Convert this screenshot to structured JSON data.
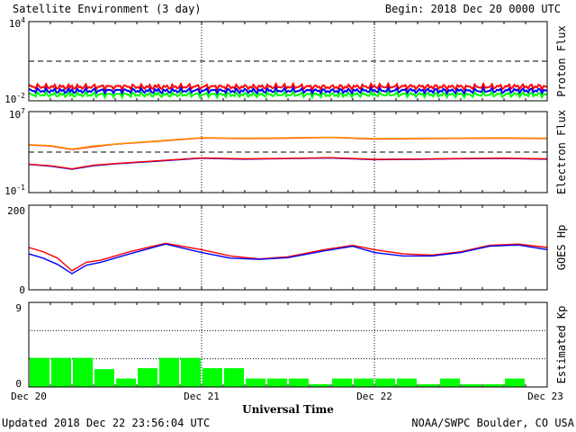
{
  "header": {
    "title": "Satellite Environment (3 day)",
    "begin": "Begin:  2018 Dec 20 0000 UTC"
  },
  "footer": {
    "updated": "Updated 2018 Dec 22 23:56:04 UTC",
    "credit": "NOAA/SWPC Boulder, CO USA"
  },
  "x_axis": {
    "title": "Universal Time",
    "ticks": [
      "Dec 20",
      "Dec 21",
      "Dec 22",
      "Dec 23"
    ],
    "range": [
      0,
      72
    ],
    "unit_note": "hours since 2018 Dec 20 0000 UTC"
  },
  "colors": {
    "red": "#ff0000",
    "blue": "#0000ff",
    "green": "#00ff00",
    "orange": "#ff9900",
    "kp_bar": "#00ff00"
  },
  "chart_data": [
    {
      "type": "line",
      "ylabel": "Proton Flux",
      "yscale": "log",
      "ylim": [
        0.01,
        10000
      ],
      "ytick_base": "10",
      "ytick_exps": [
        "4",
        "-2"
      ],
      "threshold": 10,
      "series": [
        {
          "color": "red",
          "x": [
            0,
            6,
            12,
            18,
            24,
            30,
            36,
            42,
            48,
            54,
            60,
            66,
            72
          ],
          "y": [
            0.12,
            0.11,
            0.12,
            0.11,
            0.12,
            0.11,
            0.12,
            0.11,
            0.12,
            0.12,
            0.11,
            0.12,
            0.12
          ]
        },
        {
          "color": "blue",
          "x": [
            0,
            6,
            12,
            18,
            24,
            30,
            36,
            42,
            48,
            54,
            60,
            66,
            72
          ],
          "y": [
            0.06,
            0.055,
            0.06,
            0.055,
            0.06,
            0.055,
            0.06,
            0.055,
            0.06,
            0.06,
            0.055,
            0.06,
            0.06
          ]
        },
        {
          "color": "green",
          "x": [
            0,
            6,
            12,
            18,
            24,
            30,
            36,
            42,
            48,
            54,
            60,
            66,
            72
          ],
          "y": [
            0.03,
            0.028,
            0.03,
            0.028,
            0.03,
            0.028,
            0.03,
            0.028,
            0.03,
            0.03,
            0.028,
            0.03,
            0.03
          ]
        }
      ]
    },
    {
      "type": "line",
      "ylabel": "Electron Flux",
      "yscale": "log",
      "ylim": [
        0.1,
        10000000
      ],
      "ytick_base": "10",
      "ytick_exps": [
        "7",
        "-1"
      ],
      "threshold": 1000,
      "series": [
        {
          "color": "red",
          "x": [
            0,
            3,
            6,
            9,
            12,
            18,
            24,
            30,
            36,
            42,
            48,
            54,
            60,
            66,
            72
          ],
          "y": [
            5000,
            4000,
            1800,
            3500,
            6000,
            12000,
            25000,
            22000,
            24000,
            28000,
            20000,
            21000,
            23000,
            24000,
            22000
          ]
        },
        {
          "color": "orange",
          "x": [
            0,
            3,
            6,
            9,
            12,
            18,
            24,
            30,
            36,
            42,
            48,
            54,
            60,
            66,
            72
          ],
          "y": [
            5500,
            4500,
            2000,
            4000,
            6500,
            13000,
            27000,
            24000,
            26000,
            30000,
            22000,
            23000,
            25000,
            26000,
            24000
          ]
        },
        {
          "color": "blue",
          "x": [
            0,
            3,
            6,
            9,
            12,
            18,
            24,
            30,
            36,
            42,
            48,
            54,
            60,
            66,
            72
          ],
          "y": [
            60,
            40,
            20,
            45,
            70,
            130,
            250,
            200,
            230,
            260,
            180,
            190,
            220,
            240,
            200
          ]
        },
        {
          "color": "red",
          "x": [
            0,
            3,
            6,
            9,
            12,
            18,
            24,
            30,
            36,
            42,
            48,
            54,
            60,
            66,
            72
          ],
          "y": [
            65,
            45,
            22,
            50,
            75,
            140,
            270,
            215,
            245,
            280,
            195,
            205,
            235,
            255,
            215
          ]
        }
      ]
    },
    {
      "type": "line",
      "ylabel": "GOES Hp",
      "yscale": "linear",
      "ylim": [
        0,
        200
      ],
      "yticks": [
        "0",
        "200"
      ],
      "series": [
        {
          "color": "red",
          "x": [
            0,
            2,
            4,
            6,
            8,
            10,
            14,
            19,
            24,
            28,
            32,
            36,
            41,
            45,
            48,
            52,
            56,
            60,
            64,
            68,
            72
          ],
          "y": [
            100,
            90,
            75,
            45,
            65,
            70,
            90,
            110,
            95,
            80,
            73,
            78,
            95,
            105,
            95,
            85,
            82,
            90,
            105,
            108,
            100
          ]
        },
        {
          "color": "blue",
          "x": [
            0,
            2,
            4,
            6,
            8,
            10,
            14,
            19,
            24,
            28,
            32,
            36,
            41,
            45,
            48,
            52,
            56,
            60,
            64,
            68,
            72
          ],
          "y": [
            85,
            75,
            60,
            38,
            58,
            65,
            85,
            108,
            88,
            75,
            72,
            76,
            92,
            103,
            88,
            80,
            80,
            88,
            103,
            106,
            95
          ]
        }
      ]
    },
    {
      "type": "bar",
      "ylabel": "Estimated Kp",
      "ylim": [
        0,
        9
      ],
      "yticks": [
        "0",
        "9"
      ],
      "x_start": [
        0,
        3,
        6,
        9,
        12,
        15,
        18,
        21,
        24,
        27,
        30,
        33,
        36,
        39,
        42,
        45,
        48,
        51,
        54,
        57,
        60,
        63,
        66,
        69
      ],
      "values": [
        3.1,
        3.1,
        3.1,
        1.9,
        0.9,
        2.0,
        3.1,
        3.1,
        2.0,
        2.0,
        0.9,
        0.9,
        0.9,
        0.3,
        0.9,
        0.9,
        0.9,
        0.9,
        0.3,
        0.9,
        0.3,
        0.3,
        0.9,
        0.0
      ]
    }
  ]
}
